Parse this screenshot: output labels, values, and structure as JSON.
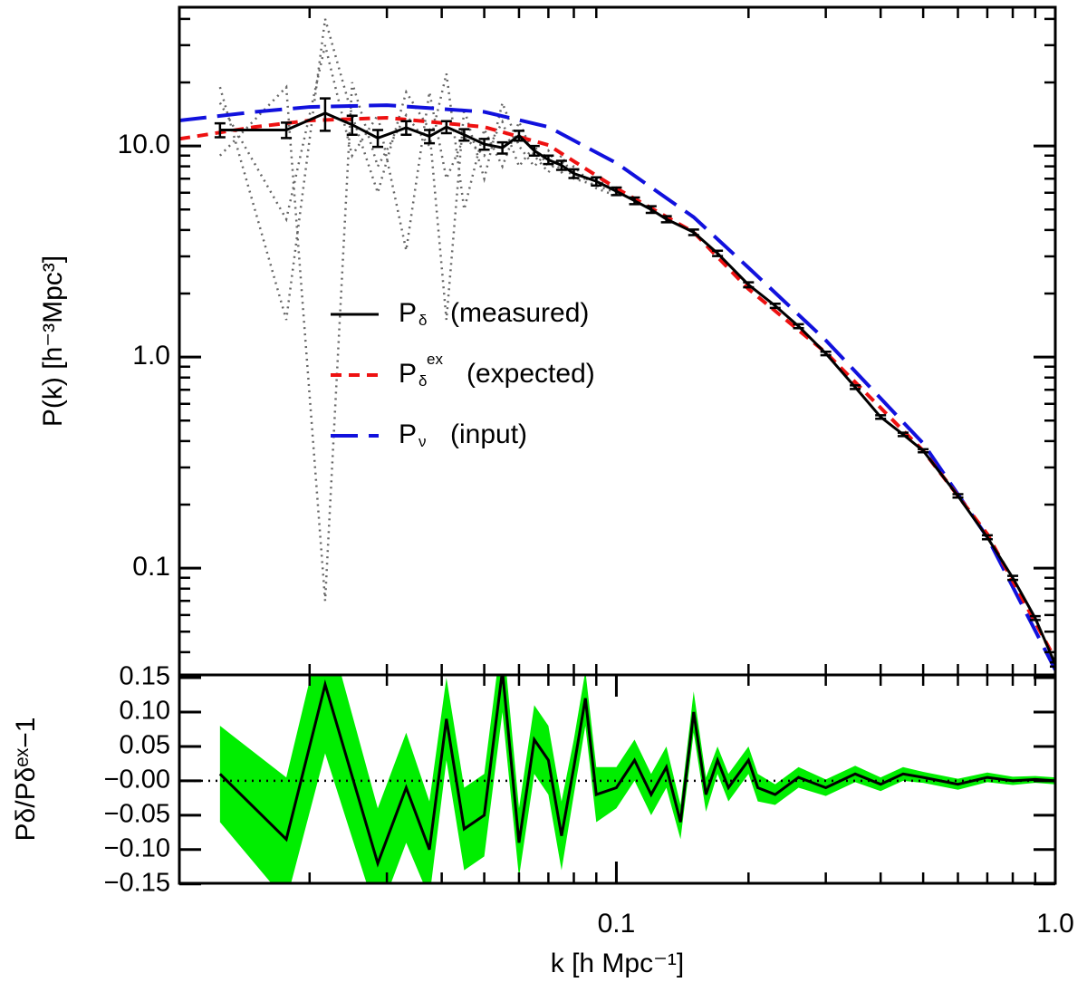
{
  "chart_data": [
    {
      "type": "line",
      "ylabel": "P(k)  [h⁻³Mpc³]",
      "xlog": true,
      "ylog": true,
      "xlim": [
        0.0101,
        1.0
      ],
      "ylim": [
        0.0312,
        45.4
      ],
      "yticks": [
        {
          "value": 10,
          "label": "10.0"
        },
        {
          "value": 1,
          "label": "1.0"
        },
        0.1
      ],
      "yminor": [
        0.04,
        0.05,
        0.06,
        0.07,
        0.08,
        0.09,
        0.2,
        0.3,
        0.4,
        0.5,
        0.6,
        0.7,
        0.8,
        0.9,
        2,
        3,
        4,
        5,
        6,
        7,
        8,
        9,
        20,
        30,
        40
      ],
      "xminor": [
        0.02,
        0.03,
        0.04,
        0.05,
        0.06,
        0.07,
        0.08,
        0.09,
        0.2,
        0.3,
        0.4,
        0.5,
        0.6,
        0.7,
        0.8,
        0.9
      ],
      "realizations": {
        "color": "#666666",
        "x": [
          0.0125,
          0.0177,
          0.0217,
          0.025,
          0.0286,
          0.0332,
          0.0375,
          0.041,
          0.045,
          0.05,
          0.055,
          0.06,
          0.065,
          0.07,
          0.075,
          0.08,
          0.09,
          0.1
        ],
        "series": [
          [
            16,
            4.5,
            30,
            9,
            14,
            3.2,
            18,
            7,
            11,
            9,
            13,
            8,
            10,
            8,
            8.5,
            7,
            6.5,
            6
          ],
          [
            9,
            19,
            0.07,
            20,
            8,
            14,
            10,
            22,
            5,
            12,
            8,
            13,
            9,
            7.5,
            9,
            7,
            7,
            6.2
          ],
          [
            19,
            1.5,
            40,
            14,
            6,
            18,
            12,
            1.5,
            15,
            7,
            16,
            10,
            8,
            9.5,
            7.5,
            8,
            6.3,
            5.8
          ]
        ]
      },
      "series": [
        {
          "label": {
            "symbol": "P",
            "sub": "δ",
            "text": "(measured)"
          },
          "color": "#000000",
          "dash": "none",
          "width": 3,
          "x": [
            0.0125,
            0.0177,
            0.0217,
            0.025,
            0.0286,
            0.0332,
            0.0375,
            0.041,
            0.045,
            0.05,
            0.055,
            0.06,
            0.065,
            0.07,
            0.075,
            0.08,
            0.09,
            0.1,
            0.11,
            0.12,
            0.13,
            0.15,
            0.17,
            0.2,
            0.23,
            0.26,
            0.3,
            0.35,
            0.4,
            0.45,
            0.5,
            0.6,
            0.7,
            0.8,
            0.9,
            1.0
          ],
          "values": [
            11.9,
            11.9,
            14.3,
            12.6,
            10.9,
            12.2,
            11.1,
            12.3,
            11.3,
            10.2,
            9.8,
            11.2,
            9.5,
            8.6,
            8.1,
            7.4,
            6.8,
            6.1,
            5.5,
            5.0,
            4.5,
            3.9,
            3.1,
            2.2,
            1.75,
            1.4,
            1.04,
            0.72,
            0.52,
            0.43,
            0.36,
            0.22,
            0.14,
            0.09,
            0.058,
            0.035
          ],
          "errors": [
            0.9,
            1.0,
            2.5,
            1.3,
            1.0,
            0.9,
            0.8,
            0.8,
            0.7,
            0.6,
            0.6,
            0.6,
            0.5,
            0.4,
            0.4,
            0.35,
            0.3,
            0.25,
            0.2,
            0.18,
            0.15,
            0.12,
            0.09,
            0.06,
            0.04,
            0.03,
            0.02,
            0.014,
            0.01,
            0.008,
            0.006,
            0.004,
            0.003,
            0.002,
            0.0012,
            0.0008
          ]
        },
        {
          "label": {
            "symbol": "P",
            "sub": "δ",
            "sup": "ex",
            "text": "(expected)"
          },
          "color": "#ee1111",
          "dash": "12,8",
          "width": 4,
          "x": [
            0.0101,
            0.015,
            0.02,
            0.03,
            0.05,
            0.07,
            0.1,
            0.15,
            0.2,
            0.3,
            0.5,
            0.7,
            1.0
          ],
          "values": [
            10.8,
            12.3,
            13.2,
            13.6,
            12.3,
            10.1,
            6.3,
            3.9,
            2.1,
            1.05,
            0.36,
            0.145,
            0.037
          ]
        },
        {
          "label": {
            "symbol": "P",
            "sub": "ν",
            "text": "(input)"
          },
          "color": "#1111dd",
          "dash": "30,12",
          "width": 4,
          "x": [
            0.0101,
            0.015,
            0.02,
            0.03,
            0.05,
            0.07,
            0.1,
            0.15,
            0.2,
            0.3,
            0.5,
            0.7,
            1.0
          ],
          "values": [
            13.2,
            14.5,
            15.3,
            15.6,
            14.5,
            12.3,
            8.3,
            4.6,
            2.65,
            1.2,
            0.39,
            0.14,
            0.033
          ]
        }
      ]
    },
    {
      "type": "band",
      "ylabel": "Pδ/Pδᵉˣ−1",
      "xlabel": "k [h Mpc⁻¹]",
      "xlog": true,
      "xlim": [
        0.0101,
        1.0
      ],
      "ylim": [
        -0.149,
        0.154
      ],
      "xticks": [
        0.1,
        {
          "value": 1,
          "label": "1.0"
        }
      ],
      "xminor": [
        0.02,
        0.03,
        0.04,
        0.05,
        0.06,
        0.07,
        0.08,
        0.09,
        0.2,
        0.3,
        0.4,
        0.5,
        0.6,
        0.7,
        0.8,
        0.9
      ],
      "yticks": [
        {
          "value": 0.15,
          "label": "0.15"
        },
        {
          "value": 0.1,
          "label": "0.10"
        },
        0.05,
        {
          "value": 0,
          "label": "−0.00"
        },
        {
          "value": -0.05,
          "label": "−0.05"
        },
        {
          "value": -0.1,
          "label": "−0.10"
        },
        {
          "value": -0.15,
          "label": "−0.15"
        }
      ],
      "hline": 0,
      "band_color": "#00ee00",
      "color": "#000000",
      "x": [
        0.0125,
        0.0177,
        0.0217,
        0.0286,
        0.0332,
        0.0375,
        0.041,
        0.045,
        0.05,
        0.055,
        0.06,
        0.065,
        0.07,
        0.075,
        0.08,
        0.085,
        0.09,
        0.1,
        0.11,
        0.12,
        0.13,
        0.14,
        0.15,
        0.16,
        0.17,
        0.18,
        0.2,
        0.21,
        0.23,
        0.26,
        0.3,
        0.35,
        0.4,
        0.45,
        0.5,
        0.6,
        0.7,
        0.8,
        0.9,
        1.0
      ],
      "values": [
        0.01,
        -0.085,
        0.14,
        -0.12,
        -0.01,
        -0.1,
        0.09,
        -0.07,
        -0.05,
        0.16,
        -0.09,
        0.06,
        0.03,
        -0.08,
        0.02,
        0.12,
        -0.02,
        -0.01,
        0.03,
        -0.02,
        0.02,
        -0.06,
        0.1,
        -0.02,
        0.03,
        -0.01,
        0.03,
        -0.01,
        -0.02,
        0.005,
        -0.01,
        0.01,
        -0.005,
        0.01,
        0.005,
        -0.005,
        0.005,
        0,
        0.002,
        0
      ],
      "errors": [
        0.07,
        0.09,
        0.1,
        0.08,
        0.08,
        0.07,
        0.06,
        0.06,
        0.06,
        0.06,
        0.05,
        0.05,
        0.05,
        0.05,
        0.04,
        0.04,
        0.04,
        0.03,
        0.03,
        0.03,
        0.03,
        0.025,
        0.03,
        0.025,
        0.02,
        0.02,
        0.02,
        0.02,
        0.015,
        0.015,
        0.012,
        0.012,
        0.01,
        0.01,
        0.008,
        0.008,
        0.007,
        0.006,
        0.005,
        0.005
      ]
    }
  ]
}
